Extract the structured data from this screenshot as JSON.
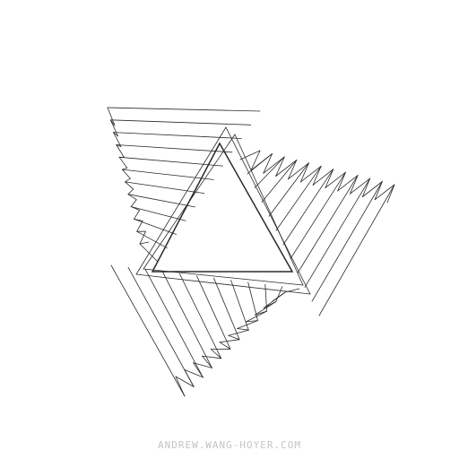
{
  "artwork": {
    "credit": "ANDREW.WANG-HOYER.COM",
    "stroke_color": "#2a2a2a",
    "background_color": "#ffffff"
  }
}
